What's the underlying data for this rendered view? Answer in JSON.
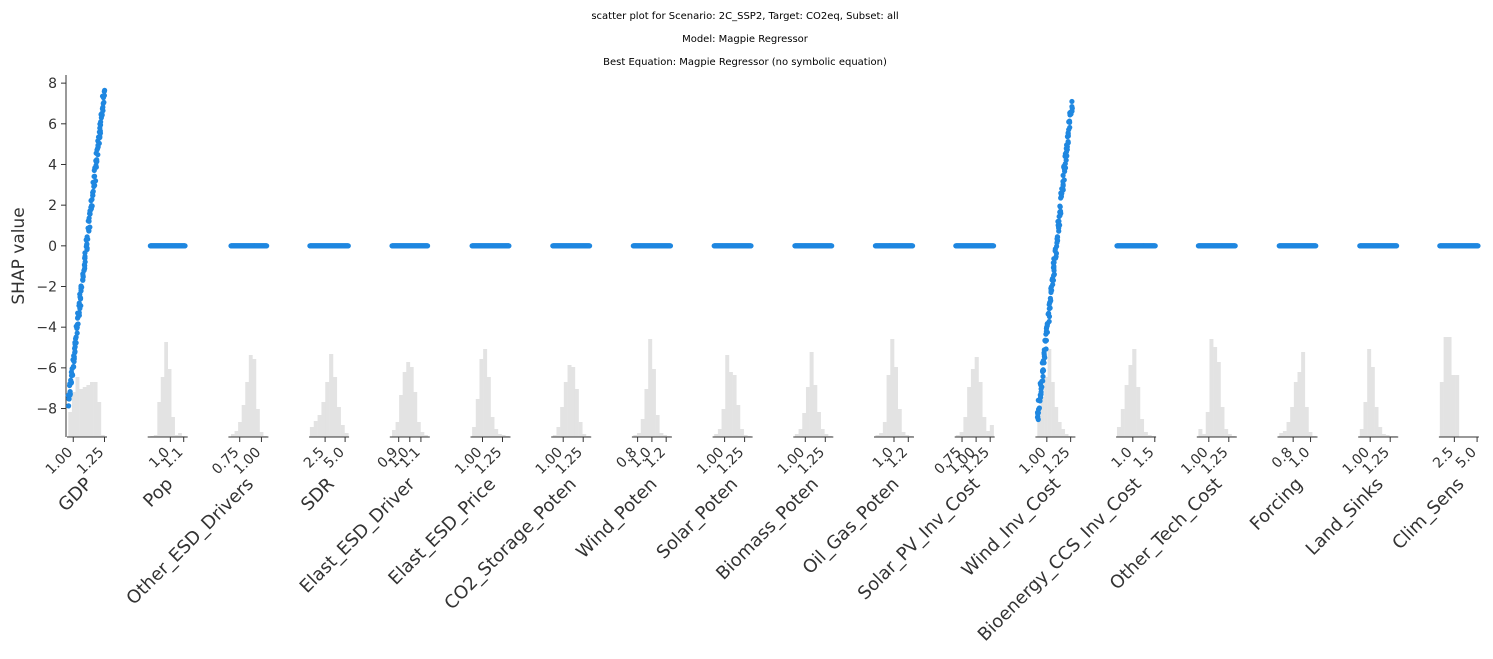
{
  "chart_data": {
    "type": "scatter",
    "title_lines": [
      "scatter plot for Scenario: 2C_SSP2, Target: CO2eq, Subset: all",
      "Model: Magpie Regressor",
      "Best Equation: Magpie Regressor (no symbolic equation)"
    ],
    "ylabel": "SHAP value",
    "ylim": [
      -9.4,
      8.4
    ],
    "yticks": [
      {
        "value": 8,
        "label": "8"
      },
      {
        "value": 6,
        "label": "6"
      },
      {
        "value": 4,
        "label": "4"
      },
      {
        "value": 2,
        "label": "2"
      },
      {
        "value": 0,
        "label": "0"
      },
      {
        "value": -2,
        "label": "−2"
      },
      {
        "value": -4,
        "label": "−4"
      },
      {
        "value": -6,
        "label": "−6"
      },
      {
        "value": -8,
        "label": "−8"
      }
    ],
    "point_color": "#1f87e0",
    "hist_color": "#e3e3e3",
    "features": [
      {
        "name": "GDP",
        "xrange": [
          0.95,
          1.27
        ],
        "spread": [
          0.96,
          1.25
        ],
        "ticks": [
          {
            "value": 1.0,
            "label": "1.00"
          },
          {
            "value": 1.25,
            "label": "1.25"
          }
        ],
        "shap_min": -7.8,
        "shap_max": 7.6,
        "hist": [
          0.25,
          0.45,
          0.6,
          0.48,
          0.5,
          0.52,
          0.55,
          0.55,
          0.35,
          0.02
        ]
      },
      {
        "name": "Pop",
        "xrange": [
          0.83,
          1.13
        ],
        "spread": [
          0.85,
          1.11
        ],
        "ticks": [
          {
            "value": 1.0,
            "label": "1.0"
          },
          {
            "value": 1.1,
            "label": "1.1"
          }
        ],
        "shap_min": 0,
        "shap_max": 0,
        "hist": [
          0.01,
          0.02,
          0.35,
          0.6,
          0.95,
          0.68,
          0.2,
          0.02,
          0.04,
          0.01
        ]
      },
      {
        "name": "Other_ESD_Drivers",
        "xrange": [
          0.62,
          1.08
        ],
        "spread": [
          0.65,
          1.06
        ],
        "ticks": [
          {
            "value": 0.75,
            "label": "0.75"
          },
          {
            "value": 1.0,
            "label": "1.00"
          }
        ],
        "shap_min": 0,
        "shap_max": 0,
        "hist": [
          0.03,
          0.06,
          0.15,
          0.32,
          0.55,
          0.82,
          0.78,
          0.28,
          0.05,
          0.01
        ]
      },
      {
        "name": "SDR",
        "xrange": [
          0.5,
          5.5
        ],
        "spread": [
          0.6,
          5.4
        ],
        "ticks": [
          {
            "value": 2.5,
            "label": "2.5"
          },
          {
            "value": 5.0,
            "label": "5.0"
          }
        ],
        "shap_min": 0,
        "shap_max": 0,
        "hist": [
          0.1,
          0.16,
          0.22,
          0.35,
          0.55,
          0.83,
          0.6,
          0.3,
          0.12,
          0.04
        ]
      },
      {
        "name": "Elast_ESD_Driver",
        "xrange": [
          0.82,
          1.18
        ],
        "spread": [
          0.84,
          1.16
        ],
        "ticks": [
          {
            "value": 0.9,
            "label": "0.9"
          },
          {
            "value": 1.0,
            "label": "1.0"
          },
          {
            "value": 1.1,
            "label": "1.1"
          }
        ],
        "shap_min": 0,
        "shap_max": 0,
        "hist": [
          0.07,
          0.15,
          0.42,
          0.65,
          0.75,
          0.7,
          0.45,
          0.15,
          0.05,
          0.02
        ]
      },
      {
        "name": "Elast_ESD_Price",
        "xrange": [
          0.85,
          1.35
        ],
        "spread": [
          0.87,
          1.33
        ],
        "ticks": [
          {
            "value": 1.0,
            "label": "1.00"
          },
          {
            "value": 1.25,
            "label": "1.25"
          }
        ],
        "shap_min": 0,
        "shap_max": 0,
        "hist": [
          0.1,
          0.38,
          0.78,
          0.88,
          0.6,
          0.2,
          0.08,
          0.03,
          0.02,
          0.01
        ]
      },
      {
        "name": "CO2_Storage_Poten",
        "xrange": [
          0.85,
          1.35
        ],
        "spread": [
          0.87,
          1.33
        ],
        "ticks": [
          {
            "value": 1.0,
            "label": "1.00"
          },
          {
            "value": 1.25,
            "label": "1.25"
          }
        ],
        "shap_min": 0,
        "shap_max": 0,
        "hist": [
          0.02,
          0.1,
          0.3,
          0.55,
          0.72,
          0.7,
          0.48,
          0.15,
          0.03,
          0.01
        ]
      },
      {
        "name": "Wind_Poten",
        "xrange": [
          0.72,
          1.28
        ],
        "spread": [
          0.74,
          1.26
        ],
        "ticks": [
          {
            "value": 0.8,
            "label": "0.8"
          },
          {
            "value": 1.0,
            "label": "1.0"
          },
          {
            "value": 1.2,
            "label": "1.2"
          }
        ],
        "shap_min": 0,
        "shap_max": 0,
        "hist": [
          0.02,
          0.04,
          0.18,
          0.48,
          0.98,
          0.68,
          0.22,
          0.04,
          0.02,
          0.01
        ]
      },
      {
        "name": "Solar_Poten",
        "xrange": [
          0.85,
          1.35
        ],
        "spread": [
          0.87,
          1.33
        ],
        "ticks": [
          {
            "value": 1.0,
            "label": "1.00"
          },
          {
            "value": 1.25,
            "label": "1.25"
          }
        ],
        "shap_min": 0,
        "shap_max": 0,
        "hist": [
          0.03,
          0.08,
          0.28,
          0.82,
          0.65,
          0.62,
          0.32,
          0.08,
          0.02,
          0.01
        ]
      },
      {
        "name": "Biomass_Poten",
        "xrange": [
          0.85,
          1.35
        ],
        "spread": [
          0.87,
          1.33
        ],
        "ticks": [
          {
            "value": 1.0,
            "label": "1.00"
          },
          {
            "value": 1.25,
            "label": "1.25"
          }
        ],
        "shap_min": 0,
        "shap_max": 0,
        "hist": [
          0.03,
          0.08,
          0.24,
          0.5,
          0.85,
          0.52,
          0.25,
          0.08,
          0.03,
          0.01
        ]
      },
      {
        "name": "Oil_Gas_Poten",
        "xrange": [
          0.72,
          1.28
        ],
        "spread": [
          0.74,
          1.26
        ],
        "ticks": [
          {
            "value": 1.0,
            "label": "1.0"
          },
          {
            "value": 1.2,
            "label": "1.2"
          }
        ],
        "shap_min": 0,
        "shap_max": 0,
        "hist": [
          0.02,
          0.04,
          0.15,
          0.62,
          0.98,
          0.7,
          0.28,
          0.05,
          0.02,
          0.01
        ]
      },
      {
        "name": "Solar_PV_Inv_Cost",
        "xrange": [
          0.62,
          1.33
        ],
        "spread": [
          0.64,
          1.31
        ],
        "ticks": [
          {
            "value": 0.75,
            "label": "0.75"
          },
          {
            "value": 1.0,
            "label": "1.00"
          },
          {
            "value": 1.25,
            "label": "1.25"
          }
        ],
        "shap_min": 0,
        "shap_max": 0,
        "hist": [
          0.02,
          0.05,
          0.2,
          0.5,
          0.68,
          0.8,
          0.55,
          0.2,
          0.06,
          0.12
        ]
      },
      {
        "name": "Wind_Inv_Cost",
        "xrange": [
          0.88,
          1.3
        ],
        "spread": [
          0.9,
          1.26
        ],
        "ticks": [
          {
            "value": 1.0,
            "label": "1.00"
          },
          {
            "value": 1.25,
            "label": "1.25"
          }
        ],
        "shap_min": -8.6,
        "shap_max": 7.0,
        "hist": [
          0.2,
          0.4,
          0.6,
          0.88,
          0.55,
          0.3,
          0.15,
          0.08,
          0.03,
          0.01
        ]
      },
      {
        "name": "Bioenergy_CCS_Inv_Cost",
        "xrange": [
          0.62,
          1.53
        ],
        "spread": [
          0.64,
          1.51
        ],
        "ticks": [
          {
            "value": 1.0,
            "label": "1.0"
          },
          {
            "value": 1.5,
            "label": "1.5"
          }
        ],
        "shap_min": 0,
        "shap_max": 0,
        "hist": [
          0.1,
          0.28,
          0.52,
          0.72,
          0.88,
          0.5,
          0.18,
          0.05,
          0.02,
          0.01
        ]
      },
      {
        "name": "Other_Tech_Cost",
        "xrange": [
          0.85,
          1.35
        ],
        "spread": [
          0.87,
          1.33
        ],
        "ticks": [
          {
            "value": 1.0,
            "label": "1.00"
          },
          {
            "value": 1.25,
            "label": "1.25"
          }
        ],
        "shap_min": 0,
        "shap_max": 0,
        "hist": [
          0.08,
          0.03,
          0.25,
          0.98,
          0.9,
          0.75,
          0.3,
          0.08,
          0.03,
          0.01
        ]
      },
      {
        "name": "Forcing",
        "xrange": [
          0.62,
          1.08
        ],
        "spread": [
          0.64,
          1.06
        ],
        "ticks": [
          {
            "value": 0.8,
            "label": "0.8"
          },
          {
            "value": 1.0,
            "label": "1.0"
          }
        ],
        "shap_min": 0,
        "shap_max": 0,
        "hist": [
          0.04,
          0.06,
          0.15,
          0.3,
          0.55,
          0.65,
          0.85,
          0.3,
          0.05,
          0.01
        ]
      },
      {
        "name": "Land_Sinks",
        "xrange": [
          0.85,
          1.35
        ],
        "spread": [
          0.87,
          1.33
        ],
        "ticks": [
          {
            "value": 1.0,
            "label": "1.00"
          },
          {
            "value": 1.25,
            "label": "1.25"
          }
        ],
        "shap_min": 0,
        "shap_max": 0,
        "hist": [
          0.08,
          0.35,
          0.88,
          0.7,
          0.3,
          0.1,
          0.03,
          0.02,
          0.01,
          0.01
        ]
      },
      {
        "name": "Clim_Sens",
        "xrange": [
          0.8,
          5.2
        ],
        "spread": [
          0.9,
          5.1
        ],
        "ticks": [
          {
            "value": 2.5,
            "label": "2.5"
          },
          {
            "value": 5.0,
            "label": "5.0"
          }
        ],
        "shap_min": 0,
        "shap_max": 0,
        "hist": [
          0.55,
          1.0,
          1.0,
          0.62,
          0.62,
          0,
          0,
          0,
          0,
          0
        ]
      }
    ]
  }
}
